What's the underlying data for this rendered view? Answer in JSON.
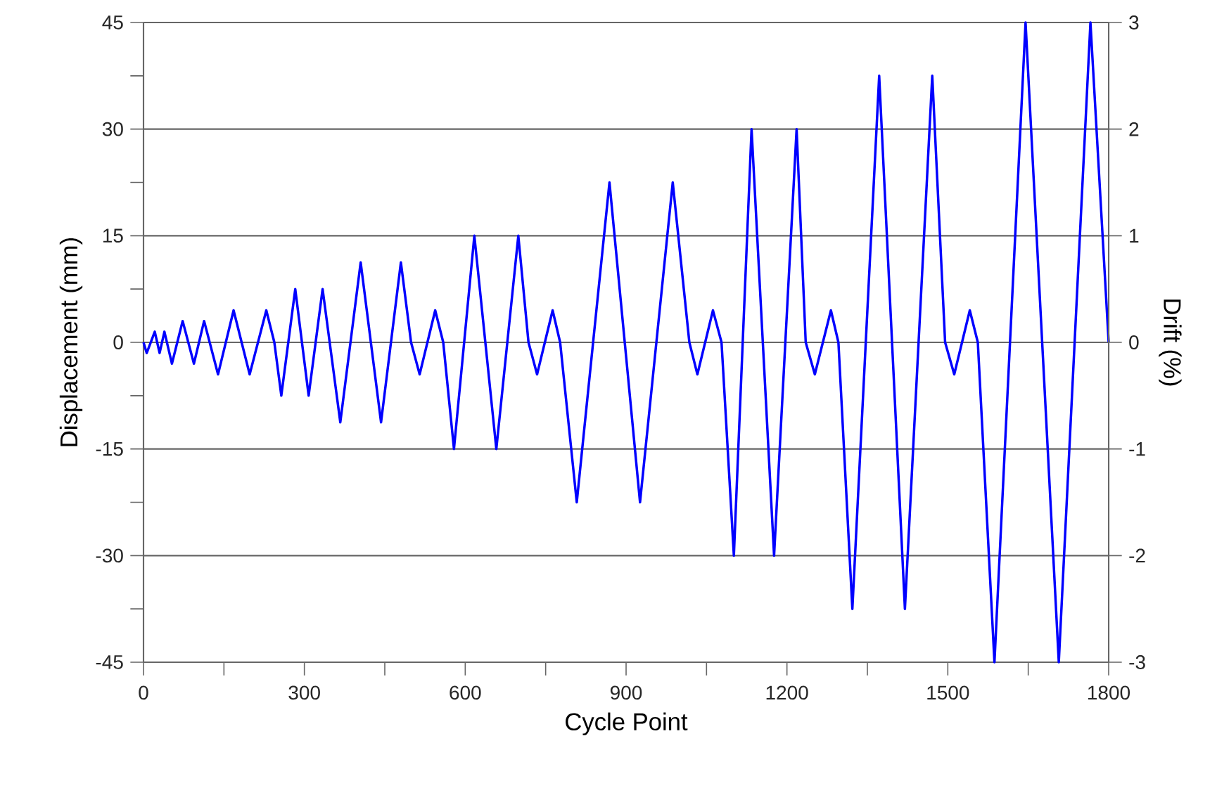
{
  "chart_data": {
    "type": "line",
    "xlabel": "Cycle Point",
    "ylabel": "Displacement (mm)",
    "y2label": "Drift (%)",
    "x": [
      0,
      6,
      21,
      30,
      39,
      53,
      73,
      94,
      113,
      139,
      168,
      198,
      229,
      244,
      257,
      283,
      308,
      334,
      367,
      405,
      443,
      480,
      499,
      515,
      544,
      559,
      579,
      617,
      658,
      699,
      718,
      734,
      763,
      777,
      808,
      869,
      926,
      987,
      1018,
      1033,
      1062,
      1078,
      1101,
      1134,
      1176,
      1218,
      1235,
      1252,
      1282,
      1296,
      1322,
      1372,
      1420,
      1471,
      1495,
      1512,
      1541,
      1556,
      1587,
      1645,
      1707,
      1766,
      1800
    ],
    "series": [
      {
        "color": "#0000ff",
        "values": [
          0,
          -1.5,
          1.5,
          -1.5,
          1.5,
          -3,
          3,
          -3,
          3,
          -4.5,
          4.5,
          -4.5,
          4.5,
          0,
          -7.5,
          7.5,
          -7.5,
          7.5,
          -11.25,
          11.25,
          -11.25,
          11.25,
          0,
          -4.5,
          4.5,
          0,
          -15,
          15,
          -15,
          15,
          0,
          -4.5,
          4.5,
          0,
          -22.5,
          22.5,
          -22.5,
          22.5,
          0,
          -4.5,
          4.5,
          0,
          -30,
          30,
          -30,
          30,
          0,
          -4.5,
          4.5,
          0,
          -37.5,
          37.5,
          -37.5,
          37.5,
          0,
          -4.5,
          4.5,
          0,
          -45,
          45,
          -45,
          45,
          0
        ]
      }
    ],
    "xlim": [
      0,
      1800
    ],
    "xticks": [
      0,
      {
        "value": 150,
        "label": null
      },
      300,
      {
        "value": 450,
        "label": null
      },
      600,
      {
        "value": 750,
        "label": null
      },
      900,
      {
        "value": 1050,
        "label": null
      },
      1200,
      {
        "value": 1350,
        "label": null
      },
      1500,
      {
        "value": 1650,
        "label": null
      },
      1800
    ],
    "ylim": [
      -45,
      45
    ],
    "yticks": [
      -45,
      {
        "value": -37.5,
        "label": null
      },
      -30,
      {
        "value": -22.5,
        "label": null
      },
      -15,
      {
        "value": -7.5,
        "label": null
      },
      0,
      {
        "value": 7.5,
        "label": null
      },
      15,
      {
        "value": 22.5,
        "label": null
      },
      30,
      {
        "value": 37.5,
        "label": null
      },
      45
    ],
    "y2lim": [
      -3,
      3
    ],
    "y2ticks": [
      -3,
      -2,
      -1,
      0,
      1,
      2,
      3
    ],
    "grid": "y",
    "marker": "none",
    "line_style": "solid"
  }
}
